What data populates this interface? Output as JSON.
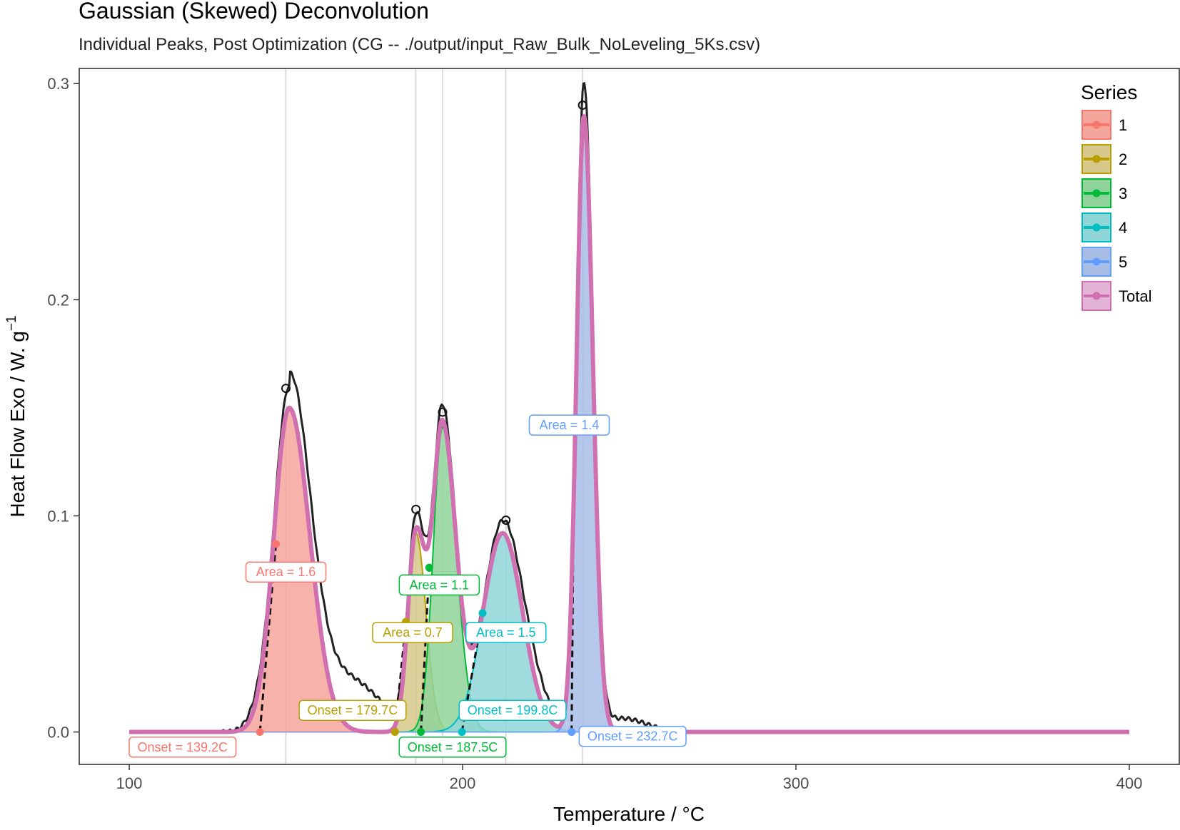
{
  "chart_data": {
    "type": "area",
    "title": "Gaussian (Skewed) Deconvolution",
    "subtitle": "Individual Peaks, Post Optimization (CG -- ./output/input_Raw_Bulk_NoLeveling_5Ks.csv)",
    "xlabel": "Temperature / °C",
    "ylabel": "Heat Flow Exo / W. g",
    "ylabel_sup": "−1",
    "xlim": [
      85,
      415
    ],
    "ylim": [
      -0.015,
      0.307
    ],
    "xticks": [
      100,
      200,
      300,
      400
    ],
    "yticks": [
      0.0,
      0.1,
      0.2,
      0.3
    ],
    "ytick_labels": [
      "0.0",
      "0.1",
      "0.2",
      "0.3"
    ],
    "grid": false,
    "legend": {
      "title": "Series",
      "position": "right-top"
    },
    "raw_trace_color": "#222222",
    "peak_lines_x": [
      147,
      186,
      194,
      213,
      236
    ],
    "series": [
      {
        "name": "1",
        "color": "#f8766d",
        "fill": "#f4a59c",
        "peak": {
          "center": 148,
          "amp": 0.15,
          "sigma_left": 4.6,
          "sigma_right": 6.2
        },
        "area_label": "Area = 1.6",
        "area_point": [
          144,
          0.087
        ],
        "area_label_pos": [
          147,
          0.074
        ],
        "onset_label": "Onset = 139.2C",
        "onset_x": 139.2,
        "onset_label_pos": [
          116,
          -0.007
        ]
      },
      {
        "name": "2",
        "color": "#b79f00",
        "fill": "#d6c88a",
        "peak": {
          "center": 186,
          "amp": 0.092,
          "sigma_left": 2.4,
          "sigma_right": 3.0
        },
        "area_label": "Area = 0.7",
        "area_point": [
          183,
          0.051
        ],
        "area_label_pos": [
          185,
          0.046
        ],
        "onset_label": "Onset = 179.7C",
        "onset_x": 179.7,
        "onset_label_pos": [
          167,
          0.01
        ]
      },
      {
        "name": "3",
        "color": "#00ba38",
        "fill": "#8fd39a",
        "peak": {
          "center": 194,
          "amp": 0.141,
          "sigma_left": 2.8,
          "sigma_right": 4.0
        },
        "area_label": "Area = 1.1",
        "area_point": [
          190,
          0.076
        ],
        "area_label_pos": [
          193,
          0.068
        ],
        "onset_label": "Onset = 187.5C",
        "onset_x": 187.5,
        "onset_label_pos": [
          197,
          -0.007
        ]
      },
      {
        "name": "4",
        "color": "#00bfc4",
        "fill": "#8fd5d8",
        "peak": {
          "center": 212,
          "amp": 0.092,
          "sigma_left": 5.8,
          "sigma_right": 6.0
        },
        "area_label": "Area = 1.5",
        "area_point": [
          206,
          0.055
        ],
        "area_label_pos": [
          213,
          0.046
        ],
        "onset_label": "Onset = 199.8C",
        "onset_x": 199.8,
        "onset_label_pos": [
          215,
          0.01
        ]
      },
      {
        "name": "5",
        "color": "#619cff",
        "fill": "#a8bde6",
        "peak": {
          "center": 236.4,
          "amp": 0.285,
          "sigma_left": 2.2,
          "sigma_right": 2.7
        },
        "area_label": "Area = 1.4",
        "area_point": [
          233.5,
          0.139
        ],
        "area_label_pos": [
          232,
          0.142
        ],
        "onset_label": "Onset = 232.7C",
        "onset_x": 232.7,
        "onset_label_pos": [
          251,
          -0.002
        ]
      },
      {
        "name": "Total",
        "color": "#d070b0",
        "fill": "#e3b3d5"
      }
    ],
    "raw_peak_markers": [
      [
        147,
        0.159
      ],
      [
        186,
        0.103
      ],
      [
        194,
        0.148
      ],
      [
        213,
        0.098
      ],
      [
        236,
        0.29
      ]
    ]
  }
}
